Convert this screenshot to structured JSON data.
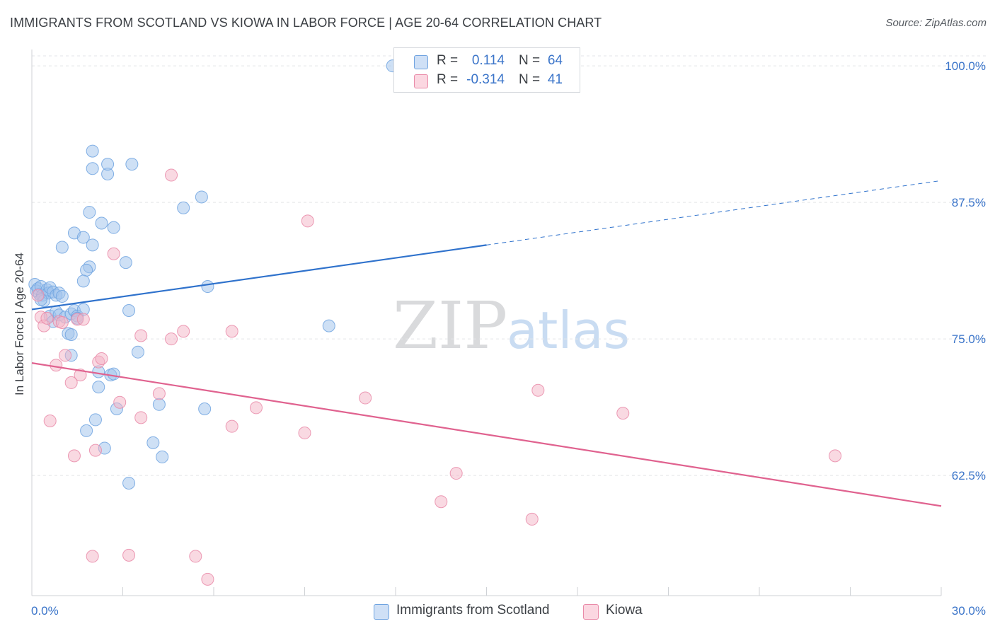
{
  "title": "IMMIGRANTS FROM SCOTLAND VS KIOWA IN LABOR FORCE | AGE 20-64 CORRELATION CHART",
  "source": "Source: ZipAtlas.com",
  "watermark": "ZIPatlas",
  "legend_stats": [
    {
      "r_label": "R =",
      "r_value": "0.114",
      "n_label": "N =",
      "n_value": "64",
      "color": "#9dc1ec"
    },
    {
      "r_label": "R =",
      "r_value": "-0.314",
      "n_label": "N =",
      "n_value": "41",
      "color": "#f4b3c6"
    }
  ],
  "chart_data": {
    "type": "scatter",
    "title": "IMMIGRANTS FROM SCOTLAND VS KIOWA IN LABOR FORCE | AGE 20-64 CORRELATION CHART",
    "xlabel": "",
    "ylabel": "In Labor Force | Age 20-64",
    "xlim": [
      0,
      30
    ],
    "ylim": [
      51.5,
      101.5
    ],
    "x_tick_labels": [
      "0.0%",
      "30.0%"
    ],
    "y_ticks": [
      62.5,
      75.0,
      87.5,
      100.0
    ],
    "y_tick_labels": [
      "62.5%",
      "75.0%",
      "87.5%",
      "100.0%"
    ],
    "grid": true,
    "legend_position": "bottom-center",
    "series": [
      {
        "name": "Immigrants from Scotland",
        "color": "#9dc1ec",
        "edge_color": "#6fa3e0",
        "trend_color": "#2f72cc",
        "trend": {
          "x0": 0.0,
          "y0": 77.7,
          "x1": 15.0,
          "y1": 83.6,
          "dashed_to_x": 30.0,
          "dashed_to_y": 89.5
        },
        "points": [
          [
            0.1,
            80.0
          ],
          [
            0.15,
            79.4
          ],
          [
            0.2,
            79.6
          ],
          [
            0.25,
            79.1
          ],
          [
            0.3,
            79.8
          ],
          [
            0.35,
            79.0
          ],
          [
            0.4,
            78.5
          ],
          [
            0.5,
            79.5
          ],
          [
            0.55,
            79.2
          ],
          [
            0.6,
            79.7
          ],
          [
            0.7,
            79.3
          ],
          [
            0.8,
            79.0
          ],
          [
            0.6,
            77.1
          ],
          [
            0.7,
            76.6
          ],
          [
            0.8,
            77.5
          ],
          [
            0.9,
            77.2
          ],
          [
            1.1,
            77.0
          ],
          [
            1.3,
            77.3
          ],
          [
            1.4,
            77.6
          ],
          [
            1.5,
            77.1
          ],
          [
            1.7,
            77.7
          ],
          [
            1.2,
            75.5
          ],
          [
            1.3,
            75.4
          ],
          [
            1.3,
            73.5
          ],
          [
            1.0,
            83.4
          ],
          [
            1.4,
            84.7
          ],
          [
            1.7,
            84.3
          ],
          [
            2.0,
            83.6
          ],
          [
            1.9,
            81.6
          ],
          [
            1.8,
            81.3
          ],
          [
            1.7,
            80.3
          ],
          [
            1.9,
            86.6
          ],
          [
            2.3,
            85.6
          ],
          [
            2.7,
            85.2
          ],
          [
            3.1,
            82.0
          ],
          [
            2.0,
            92.2
          ],
          [
            2.0,
            90.6
          ],
          [
            2.5,
            90.1
          ],
          [
            2.5,
            91.0
          ],
          [
            3.3,
            91.0
          ],
          [
            3.2,
            77.6
          ],
          [
            3.5,
            73.8
          ],
          [
            2.2,
            72.0
          ],
          [
            2.6,
            71.7
          ],
          [
            2.7,
            71.8
          ],
          [
            2.2,
            70.6
          ],
          [
            2.8,
            68.6
          ],
          [
            2.1,
            67.6
          ],
          [
            1.8,
            66.6
          ],
          [
            2.4,
            65.0
          ],
          [
            4.2,
            69.0
          ],
          [
            3.2,
            61.8
          ],
          [
            4.0,
            65.5
          ],
          [
            4.3,
            64.2
          ],
          [
            5.0,
            87.0
          ],
          [
            5.6,
            88.0
          ],
          [
            5.8,
            79.8
          ],
          [
            5.7,
            68.6
          ],
          [
            9.8,
            76.2
          ],
          [
            11.9,
            100.0
          ],
          [
            0.3,
            78.6
          ],
          [
            0.9,
            79.2
          ],
          [
            1.0,
            78.9
          ],
          [
            1.5,
            76.9
          ]
        ]
      },
      {
        "name": "Kiowa",
        "color": "#f4b3c6",
        "edge_color": "#e98aa8",
        "trend_color": "#e0628f",
        "trend": {
          "x0": 0.0,
          "y0": 72.8,
          "x1": 30.0,
          "y1": 59.7
        },
        "points": [
          [
            0.3,
            77.0
          ],
          [
            0.4,
            76.2
          ],
          [
            0.6,
            67.5
          ],
          [
            0.8,
            72.6
          ],
          [
            0.9,
            76.6
          ],
          [
            1.1,
            73.5
          ],
          [
            1.3,
            71.0
          ],
          [
            1.4,
            64.3
          ],
          [
            1.5,
            76.8
          ],
          [
            1.6,
            71.7
          ],
          [
            1.7,
            76.8
          ],
          [
            2.1,
            64.8
          ],
          [
            2.2,
            72.9
          ],
          [
            2.3,
            73.2
          ],
          [
            2.7,
            82.8
          ],
          [
            2.9,
            69.2
          ],
          [
            3.6,
            75.3
          ],
          [
            3.6,
            67.8
          ],
          [
            4.2,
            70.0
          ],
          [
            4.6,
            75.0
          ],
          [
            4.6,
            90.0
          ],
          [
            5.0,
            75.7
          ],
          [
            6.6,
            75.7
          ],
          [
            6.6,
            67.0
          ],
          [
            7.4,
            68.7
          ],
          [
            9.0,
            66.4
          ],
          [
            9.1,
            85.8
          ],
          [
            11.0,
            69.6
          ],
          [
            13.5,
            60.1
          ],
          [
            14.0,
            62.7
          ],
          [
            16.5,
            58.5
          ],
          [
            16.7,
            70.3
          ],
          [
            19.5,
            68.2
          ],
          [
            26.5,
            64.3
          ],
          [
            2.0,
            55.1
          ],
          [
            3.2,
            55.2
          ],
          [
            5.4,
            55.1
          ],
          [
            5.8,
            53.0
          ],
          [
            0.2,
            79.0
          ],
          [
            0.5,
            76.9
          ],
          [
            1.0,
            76.5
          ]
        ]
      }
    ]
  }
}
